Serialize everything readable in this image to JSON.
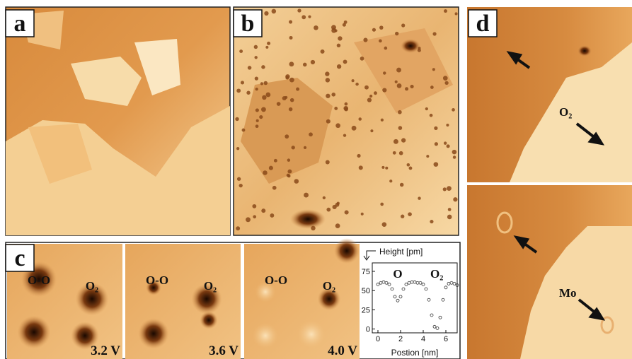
{
  "panel_a": {
    "label": "a"
  },
  "panel_b": {
    "label": "b"
  },
  "panel_c": {
    "label": "c",
    "images": [
      {
        "dimer": "O-O",
        "molecule": "O₂",
        "voltage": "3.2 V"
      },
      {
        "dimer": "O-O",
        "molecule": "O₂",
        "voltage": "3.6 V"
      },
      {
        "dimer": "O-O",
        "molecule": "O₂",
        "voltage": "4.0 V"
      }
    ]
  },
  "panel_d": {
    "label": "d",
    "top_annotation": "O₂",
    "bottom_annotation": "Mo"
  },
  "chart_data": {
    "type": "scatter",
    "y_label": "Height [pm]",
    "x_label": "Postion [nm]",
    "annotations": [
      "O",
      "O₂"
    ],
    "x": [
      0,
      0.25,
      0.5,
      0.75,
      1,
      1.25,
      1.5,
      1.75,
      2,
      2.25,
      2.5,
      2.75,
      3,
      3.25,
      3.5,
      3.75,
      4,
      4.25,
      4.5,
      4.75,
      5,
      5.25,
      5.5,
      5.75,
      6,
      6.25,
      6.5,
      6.75,
      7
    ],
    "series": [
      {
        "color": "#333333",
        "values": [
          58,
          60,
          61,
          60,
          58,
          52,
          42,
          37,
          42,
          52,
          58,
          60,
          61,
          61,
          60,
          60,
          58,
          52,
          38,
          18,
          3,
          1,
          15,
          38,
          54,
          59,
          60,
          59,
          57
        ]
      }
    ],
    "xlim": [
      -0.5,
      7
    ],
    "ylim": [
      -5,
      86
    ],
    "xticks": [
      0,
      2,
      4,
      6
    ],
    "yticks": [
      0,
      25,
      50,
      75
    ]
  }
}
